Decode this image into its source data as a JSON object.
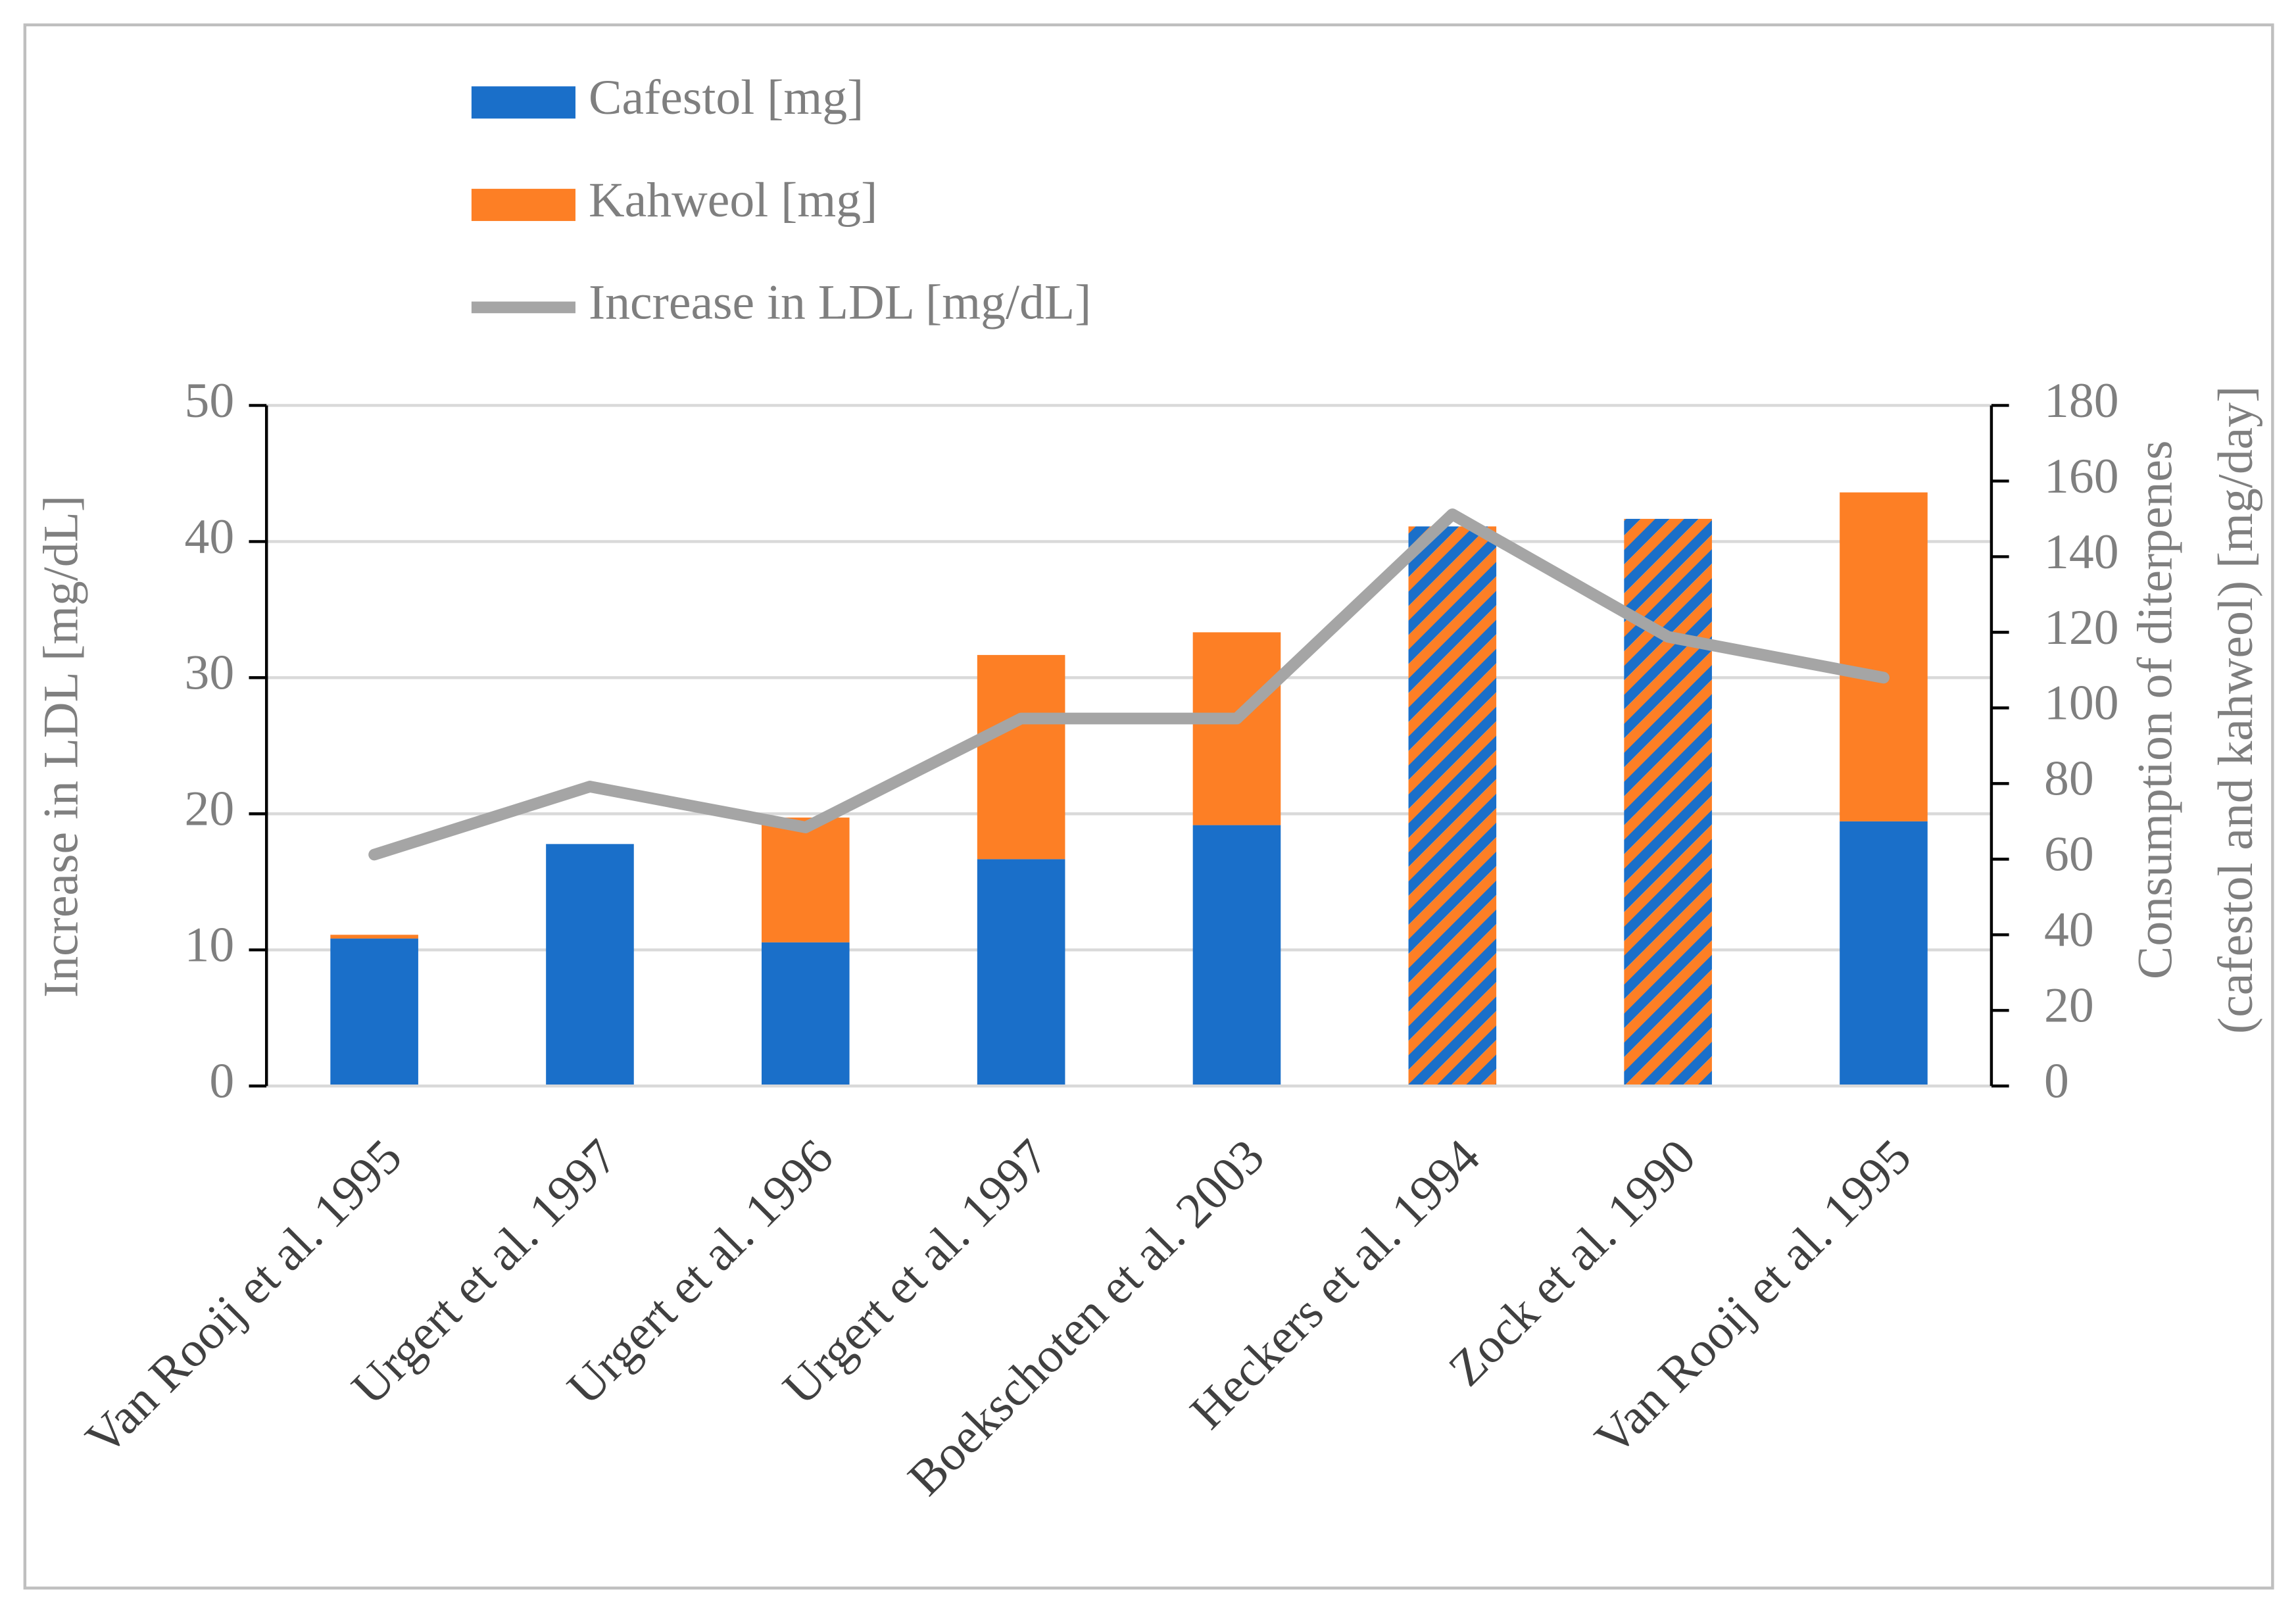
{
  "chart_data": {
    "type": "bar",
    "y_label": "Increase in LDL [mg/dL]",
    "y2_label": [
      "Consumption of diterpenes",
      "(cafestol and kahweol) [mg/day]"
    ],
    "categories": [
      "Van Rooij et al. 1995",
      "Urgert et al. 1997",
      "Urgert et al. 1996",
      "Urgert et al. 1997",
      "Boekschoten et al. 2003",
      "Heckers et al. 1994",
      "Zock et al. 1990",
      "Van Rooij et al. 1995"
    ],
    "series": [
      {
        "name": "Cafestol [mg]",
        "type": "bar",
        "axis": "y2",
        "color": "#1a6fc9",
        "values": [
          39,
          64,
          38,
          60,
          69,
          null,
          null,
          70
        ]
      },
      {
        "name": "Kahweol [mg]",
        "type": "bar",
        "axis": "y2",
        "color": "#fd7f25",
        "values": [
          1,
          0,
          33,
          54,
          51,
          null,
          null,
          87
        ]
      },
      {
        "type": "bar",
        "axis": "y2",
        "pattern": "hatch",
        "color": [
          "#1a6fc9",
          "#fd7f25"
        ],
        "values": [
          null,
          null,
          null,
          null,
          null,
          148,
          150,
          null
        ]
      },
      {
        "name": "Increase in LDL [mg/dL]",
        "type": "line",
        "axis": "y",
        "color": "#a5a5a5",
        "values": [
          17,
          22,
          19,
          27,
          27,
          42,
          33,
          30
        ]
      }
    ],
    "ylim": [
      0,
      50
    ],
    "yticks": [
      0,
      10,
      20,
      30,
      40,
      50
    ],
    "y2lim": [
      0,
      180
    ],
    "y2ticks": [
      0,
      20,
      40,
      60,
      80,
      100,
      120,
      140,
      160,
      180
    ],
    "grid": true,
    "legend": "top"
  }
}
